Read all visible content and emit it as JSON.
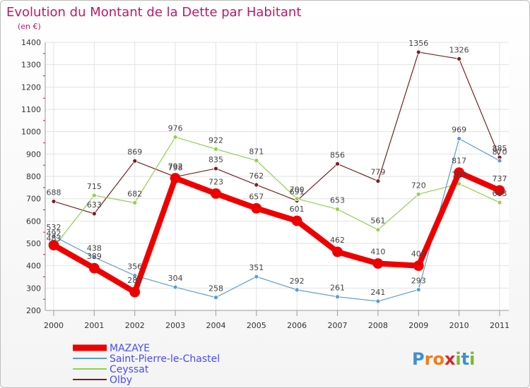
{
  "chart_data": {
    "type": "line",
    "title": "Evolution du Montant de la Dette par Habitant",
    "subtitle": "(en €)",
    "categories": [
      "2000",
      "2001",
      "2002",
      "2003",
      "2004",
      "2005",
      "2006",
      "2007",
      "2008",
      "2009",
      "2010",
      "2011"
    ],
    "ylim": [
      200,
      1400
    ],
    "yticks": [
      200,
      300,
      400,
      500,
      600,
      700,
      800,
      900,
      1000,
      1100,
      1200,
      1300,
      1400
    ],
    "grid": true,
    "legend_position": "bottom-left",
    "series": [
      {
        "name": "MAZAYE",
        "color": "#ee0000",
        "values": [
          492,
          389,
          282,
          792,
          723,
          657,
          601,
          462,
          410,
          400,
          817,
          737
        ]
      },
      {
        "name": "Saint-Pierre-le-Chastel",
        "color": "#5b9bd5",
        "values": [
          532,
          438,
          356,
          304,
          258,
          351,
          292,
          261,
          241,
          293,
          969,
          870
        ]
      },
      {
        "name": "Ceyssat",
        "color": "#92d050",
        "values": [
          483,
          715,
          682,
          976,
          922,
          871,
          700,
          653,
          561,
          720,
          767,
          683
        ]
      },
      {
        "name": "Olby",
        "color": "#7a1f1f",
        "values": [
          688,
          633,
          869,
          798,
          835,
          762,
          691,
          856,
          779,
          1356,
          1326,
          885
        ]
      }
    ]
  },
  "brand": {
    "text": "Proxiti",
    "letters": [
      "P",
      "r",
      "o",
      "x",
      "i",
      "t",
      "i"
    ],
    "colors": [
      "#3f8fd2",
      "#ef7d1a",
      "#ef7d1a",
      "#d7262d",
      "#7ab82f",
      "#3f8fd2",
      "#7ab82f"
    ]
  }
}
